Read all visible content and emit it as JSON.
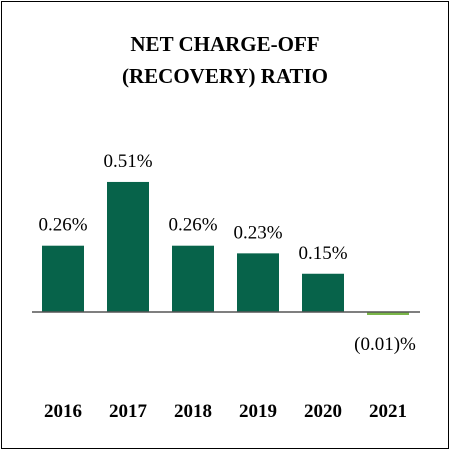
{
  "chart_data": {
    "type": "bar",
    "title_lines": [
      "NET CHARGE-OFF",
      "(RECOVERY) RATIO"
    ],
    "categories": [
      "2016",
      "2017",
      "2018",
      "2019",
      "2020",
      "2021"
    ],
    "values": [
      0.26,
      0.51,
      0.26,
      0.23,
      0.15,
      -0.01
    ],
    "data_labels": [
      "0.26%",
      "0.51%",
      "0.26%",
      "0.23%",
      "0.15%",
      "(0.01)%"
    ],
    "xlabel": "",
    "ylabel": "",
    "ylim": [
      -0.05,
      0.6
    ],
    "grid": false,
    "legend": "none",
    "colors": {
      "positive": "#07634A",
      "negative": "#7AB648",
      "axis": "#555555",
      "border": "#000000"
    }
  }
}
